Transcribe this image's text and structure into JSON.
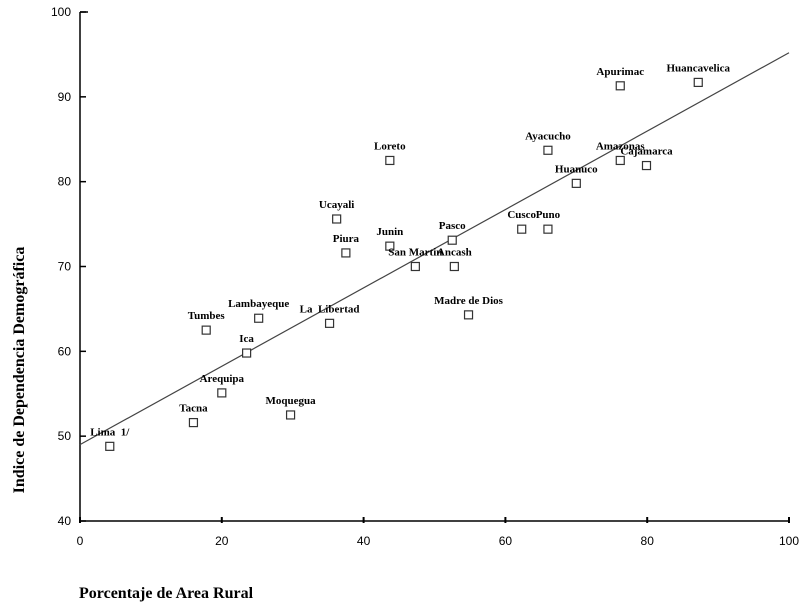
{
  "chart_data": {
    "type": "scatter",
    "xlabel": "Porcentaje de Area Rural",
    "ylabel": "Indice de Dependencia Demográfica",
    "xlim": [
      0,
      100
    ],
    "ylim": [
      40,
      100
    ],
    "xticks": [
      "0",
      "20",
      "40",
      "60",
      "80",
      "100"
    ],
    "yticks": [
      "40",
      "50",
      "60",
      "70",
      "80",
      "90",
      "100"
    ],
    "grid": false,
    "points": [
      {
        "label": "Lima  1/",
        "x": 4.2,
        "y": 48.8
      },
      {
        "label": "Tacna",
        "x": 16.0,
        "y": 51.6
      },
      {
        "label": "Arequipa",
        "x": 20.0,
        "y": 55.1
      },
      {
        "label": "Moquegua",
        "x": 29.7,
        "y": 52.5
      },
      {
        "label": "Ica",
        "x": 23.5,
        "y": 59.8
      },
      {
        "label": "Tumbes",
        "x": 17.8,
        "y": 62.5
      },
      {
        "label": "Lambayeque",
        "x": 25.2,
        "y": 63.9
      },
      {
        "label": "La  Libertad",
        "x": 35.2,
        "y": 63.3
      },
      {
        "label": "Piura",
        "x": 37.5,
        "y": 71.6
      },
      {
        "label": "Ucayali",
        "x": 36.2,
        "y": 75.6
      },
      {
        "label": "Junin",
        "x": 43.7,
        "y": 72.4
      },
      {
        "label": "San Martin",
        "x": 47.3,
        "y": 70.0
      },
      {
        "label": "Loreto",
        "x": 43.7,
        "y": 82.5
      },
      {
        "label": "Pasco",
        "x": 52.5,
        "y": 73.1
      },
      {
        "label": "Ancash",
        "x": 52.8,
        "y": 70.0
      },
      {
        "label": "Madre de Dios",
        "x": 54.8,
        "y": 64.3
      },
      {
        "label": "Cusco",
        "x": 62.3,
        "y": 74.4
      },
      {
        "label": "Puno",
        "x": 66.0,
        "y": 74.4
      },
      {
        "label": "Ayacucho",
        "x": 66.0,
        "y": 83.7
      },
      {
        "label": "Huanuco",
        "x": 70.0,
        "y": 79.8
      },
      {
        "label": "Amazonas",
        "x": 76.2,
        "y": 82.5
      },
      {
        "label": "Cajamarca",
        "x": 79.9,
        "y": 81.9
      },
      {
        "label": "Apurimac",
        "x": 76.2,
        "y": 91.3
      },
      {
        "label": "Huancavelica",
        "x": 87.2,
        "y": 91.7
      }
    ],
    "trendline": {
      "x": [
        0,
        100
      ],
      "y": [
        49.0,
        95.2
      ]
    }
  }
}
